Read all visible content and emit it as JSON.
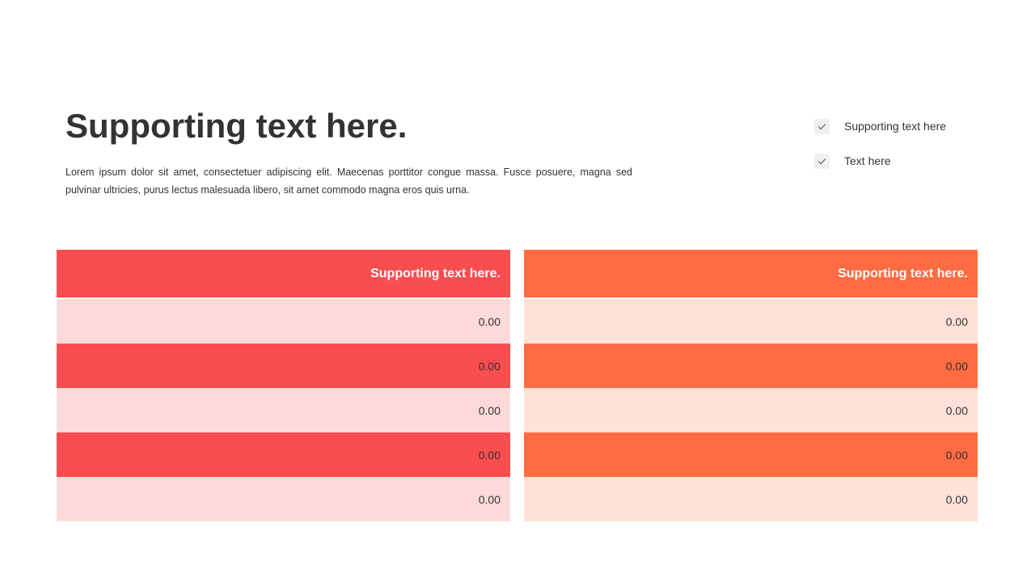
{
  "title": "Supporting text here.",
  "body": "Lorem ipsum dolor sit amet, consectetuer adipiscing elit. Maecenas porttitor congue massa. Fusce posuere, magna sed pulvinar ultricies, purus lectus malesuada libero, sit amet commodo magna eros quis urna.",
  "checklist": [
    {
      "label": "Supporting text here",
      "icon": "check-icon"
    },
    {
      "label": "Text here",
      "icon": "check-icon"
    }
  ],
  "tables": [
    {
      "header": "Supporting text here.",
      "colors": {
        "dark": "#F94D4F",
        "light": "#FCDAD9"
      },
      "rows": [
        "0.00",
        "0.00",
        "0.00",
        "0.00",
        "0.00"
      ]
    },
    {
      "header": "Supporting text here.",
      "colors": {
        "dark": "#FF6B42",
        "light": "#FFE1D9"
      },
      "rows": [
        "0.00",
        "0.00",
        "0.00",
        "0.00",
        "0.00"
      ]
    }
  ]
}
